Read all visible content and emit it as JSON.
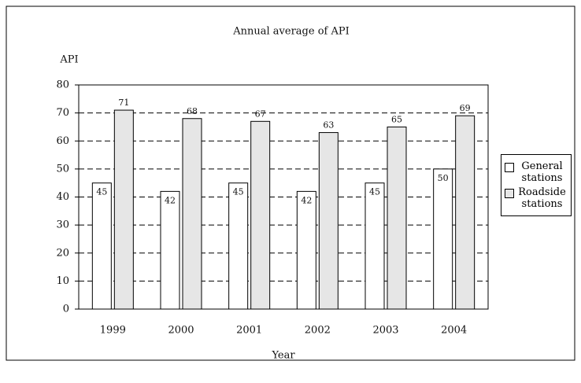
{
  "chart_data": {
    "type": "bar",
    "title": "Annual average of API",
    "y_label": "API",
    "x_label": "Year",
    "categories": [
      "1999",
      "2000",
      "2001",
      "2002",
      "2003",
      "2004"
    ],
    "series": [
      {
        "name": "General stations",
        "color": "#ffffff",
        "values": [
          45,
          42,
          45,
          42,
          45,
          50
        ]
      },
      {
        "name": "Roadside stations",
        "color": "#e6e6e6",
        "values": [
          71,
          68,
          67,
          63,
          65,
          69
        ]
      }
    ],
    "ylim": [
      0,
      80
    ],
    "yticks": [
      0,
      10,
      20,
      30,
      40,
      50,
      60,
      70,
      80
    ],
    "grid": true,
    "legend": "right"
  }
}
